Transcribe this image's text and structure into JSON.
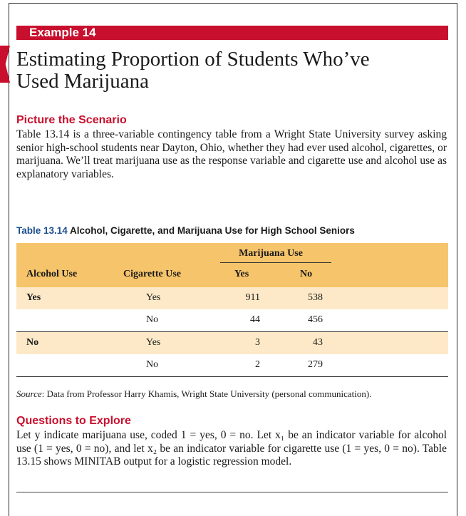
{
  "example": {
    "label": "Example 14",
    "title_line1": "Estimating Proportion of Students Who’ve",
    "title_line2": "Used Marijuana"
  },
  "scenario": {
    "heading": "Picture the Scenario",
    "text": "Table 13.14 is a three-variable contingency table from a Wright State University survey asking senior high-school students near Dayton, Ohio, whether they had ever used alcohol, cigarettes, or marijuana. We’ll treat marijuana use as the response variable and cigarette use and alcohol use as explanatory variables."
  },
  "table": {
    "number": "Table 13.14",
    "caption": "Alcohol, Cigarette, and Marijuana Use for High School Seniors",
    "group_header": "Marijuana Use",
    "headers": [
      "Alcohol Use",
      "Cigarette Use",
      "Yes",
      "No"
    ],
    "rows": [
      {
        "alcohol": "Yes",
        "cigarette": "Yes",
        "yes": "911",
        "no": "538"
      },
      {
        "alcohol": "",
        "cigarette": "No",
        "yes": "44",
        "no": "456"
      },
      {
        "alcohol": "No",
        "cigarette": "Yes",
        "yes": "3",
        "no": "43"
      },
      {
        "alcohol": "",
        "cigarette": "No",
        "yes": "2",
        "no": "279"
      }
    ],
    "source_label": "Source",
    "source_text": ": Data from Professor Harry Khamis, Wright State University (personal communication)."
  },
  "questions": {
    "heading": "Questions to Explore",
    "text": "Let y indicate marijuana use, coded 1 = yes, 0 = no. Let x₁ be an indicator variable for alcohol use (1 = yes, 0 = no), and let x₂ be an indicator variable for cigarette use (1 = yes, 0 = no). Table 13.15 shows MINITAB output for a logistic regression model."
  },
  "colors": {
    "banner": "#c8102e",
    "table_header": "#f6c46a",
    "table_shade": "#fde9c7",
    "table_number": "#1d4f91"
  }
}
